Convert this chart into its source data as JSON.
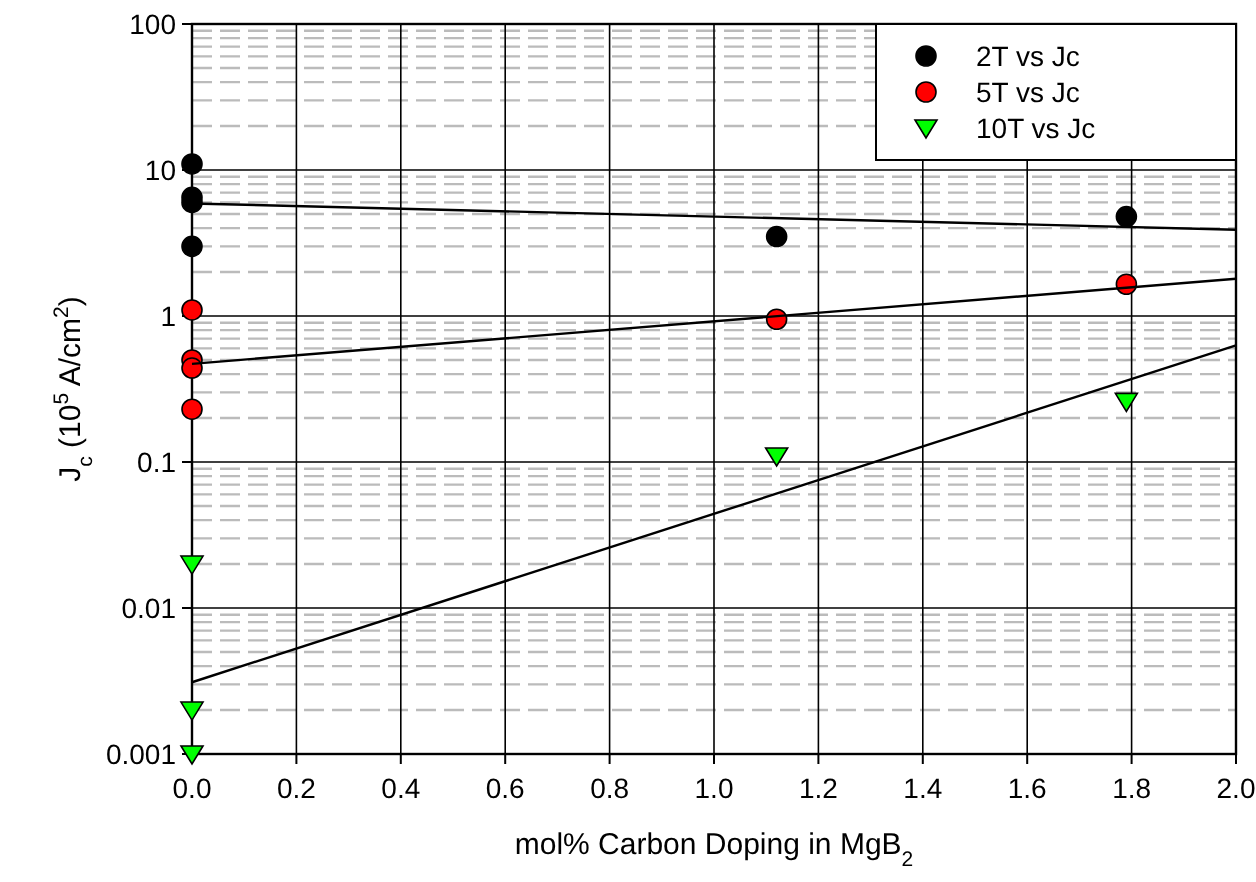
{
  "chart_data": {
    "type": "scatter",
    "xlabel": "mol% Carbon Doping in MgB$_{2}$",
    "ylabel": "J$_{c}$ (10$^{5}$ A/cm$^{2}$)",
    "log": "y",
    "grid": true,
    "legend": "top right",
    "xlim": [
      0,
      2
    ],
    "xticks": [
      {
        "value": 0,
        "label": "0.0"
      },
      0.2,
      0.4,
      0.6,
      0.8,
      {
        "value": 1,
        "label": "1.0"
      },
      1.2,
      1.4,
      1.6,
      1.8,
      {
        "value": 2,
        "label": "2.0"
      }
    ],
    "ylim": [
      0.001,
      100
    ],
    "yticks": [
      0.001,
      {
        "value": 0.002,
        "label": null
      },
      {
        "value": 0.003,
        "label": null
      },
      {
        "value": 0.004,
        "label": null
      },
      {
        "value": 0.005,
        "label": null
      },
      {
        "value": 0.006,
        "label": null
      },
      {
        "value": 0.007,
        "label": null
      },
      {
        "value": 0.008,
        "label": null
      },
      {
        "value": 0.009,
        "label": null
      },
      0.01,
      {
        "value": 0.02,
        "label": null
      },
      {
        "value": 0.03,
        "label": null
      },
      {
        "value": 0.04,
        "label": null
      },
      {
        "value": 0.05,
        "label": null
      },
      {
        "value": 0.06,
        "label": null
      },
      {
        "value": 0.07,
        "label": null
      },
      {
        "value": 0.08,
        "label": null
      },
      {
        "value": 0.09,
        "label": null
      },
      0.1,
      {
        "value": 0.2,
        "label": null
      },
      {
        "value": 0.3,
        "label": null
      },
      {
        "value": 0.4,
        "label": null
      },
      {
        "value": 0.5,
        "label": null
      },
      {
        "value": 0.6,
        "label": null
      },
      {
        "value": 0.7,
        "label": null
      },
      {
        "value": 0.8,
        "label": null
      },
      {
        "value": 0.9,
        "label": null
      },
      1,
      {
        "value": 2,
        "label": null
      },
      {
        "value": 3,
        "label": null
      },
      {
        "value": 4,
        "label": null
      },
      {
        "value": 5,
        "label": null
      },
      {
        "value": 6,
        "label": null
      },
      {
        "value": 7,
        "label": null
      },
      {
        "value": 8,
        "label": null
      },
      {
        "value": 9,
        "label": null
      },
      10,
      {
        "value": 20,
        "label": null
      },
      {
        "value": 30,
        "label": null
      },
      {
        "value": 40,
        "label": null
      },
      {
        "value": 50,
        "label": null
      },
      {
        "value": 60,
        "label": null
      },
      {
        "value": 70,
        "label": null
      },
      {
        "value": 80,
        "label": null
      },
      {
        "value": 90,
        "label": null
      },
      100
    ],
    "series": [
      {
        "name": "2T vs Jc",
        "color": "#000000",
        "marker": "circle",
        "x": [
          0,
          0,
          0,
          0,
          1.12,
          1.79
        ],
        "values": [
          11,
          6.5,
          6,
          3,
          3.5,
          4.8
        ]
      },
      {
        "name": "5T vs Jc",
        "color": "#ff0000",
        "marker": "circle",
        "x": [
          0,
          0,
          0,
          0,
          1.12,
          1.79
        ],
        "values": [
          1.1,
          0.5,
          0.44,
          0.23,
          0.95,
          1.65
        ]
      },
      {
        "name": "10T vs Jc",
        "color": "#00ff00",
        "marker": "triangle",
        "x": [
          0,
          0,
          0,
          1.12,
          1.79
        ],
        "values": [
          0.02,
          0.002,
          0.001,
          0.11,
          0.26
        ]
      },
      {
        "type": "line",
        "color": "#000000",
        "marker": "none",
        "x": [
          0,
          2
        ],
        "values": [
          5.9,
          3.9
        ]
      },
      {
        "type": "line",
        "color": "#000000",
        "marker": "none",
        "x": [
          0,
          2
        ],
        "values": [
          0.47,
          1.8
        ]
      },
      {
        "type": "line",
        "color": "#000000",
        "marker": "none",
        "x": [
          0,
          2
        ],
        "values": [
          0.0031,
          0.63
        ]
      }
    ]
  }
}
